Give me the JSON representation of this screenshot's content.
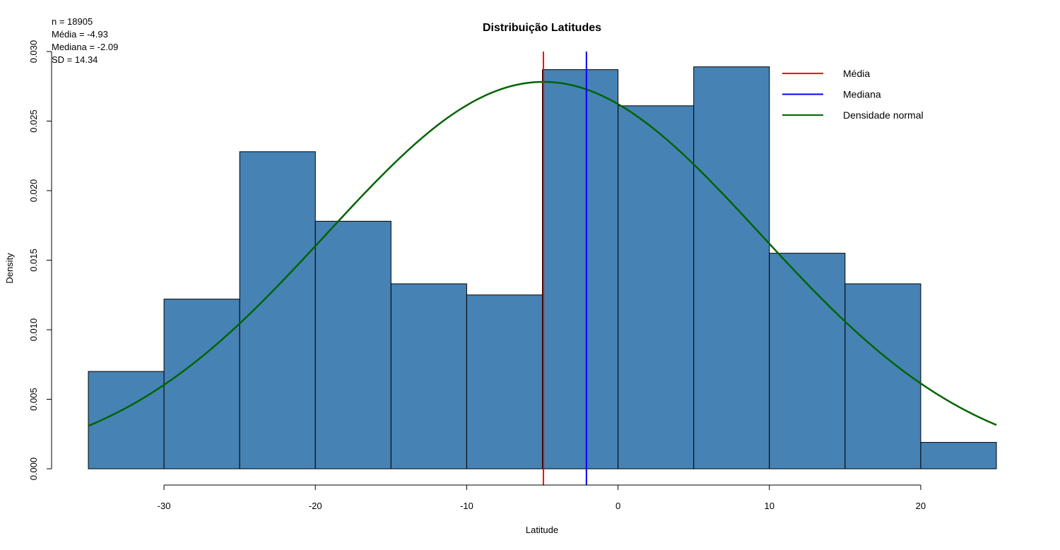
{
  "chart_data": {
    "type": "bar",
    "subtype": "histogram",
    "title": "Distribuição Latitudes",
    "xlabel": "Latitude",
    "ylabel": "Density",
    "xlim": [
      -35,
      25
    ],
    "ylim": [
      0,
      0.03
    ],
    "x_ticks": [
      -30,
      -20,
      -10,
      0,
      10,
      20
    ],
    "x_tick_labels": [
      "-30",
      "-20",
      "-10",
      "0",
      "10",
      "20"
    ],
    "y_ticks": [
      0,
      0.005,
      0.01,
      0.015,
      0.02,
      0.025,
      0.03
    ],
    "y_tick_labels": [
      "0.000",
      "0.005",
      "0.010",
      "0.015",
      "0.020",
      "0.025",
      "0.030"
    ],
    "bins": [
      {
        "start": -35,
        "end": -30,
        "density": 0.007
      },
      {
        "start": -30,
        "end": -25,
        "density": 0.0122
      },
      {
        "start": -25,
        "end": -20,
        "density": 0.0228
      },
      {
        "start": -20,
        "end": -15,
        "density": 0.0178
      },
      {
        "start": -15,
        "end": -10,
        "density": 0.0133
      },
      {
        "start": -10,
        "end": -5,
        "density": 0.0125
      },
      {
        "start": -5,
        "end": 0,
        "density": 0.0287
      },
      {
        "start": 0,
        "end": 5,
        "density": 0.0261
      },
      {
        "start": 5,
        "end": 10,
        "density": 0.0289
      },
      {
        "start": 10,
        "end": 15,
        "density": 0.0155
      },
      {
        "start": 15,
        "end": 20,
        "density": 0.0133
      },
      {
        "start": 20,
        "end": 25,
        "density": 0.0019
      }
    ],
    "bar_color": "#4682B4",
    "bar_border": "#000000",
    "vlines": [
      {
        "name": "Média",
        "x": -4.93,
        "color": "#FF0000"
      },
      {
        "name": "Mediana",
        "x": -2.09,
        "color": "#0000FF"
      }
    ],
    "normal_curve": {
      "name": "Densidade normal",
      "mean": -4.93,
      "sd": 14.34,
      "color": "#006400"
    },
    "legend": {
      "position": "top-right",
      "entries": [
        {
          "label": "Média",
          "color": "#FF0000"
        },
        {
          "label": "Mediana",
          "color": "#0000FF"
        },
        {
          "label": "Densidade normal",
          "color": "#006400"
        }
      ]
    },
    "annotations": [
      "n = 18905",
      "Média = -4.93",
      "Mediana = -2.09",
      "SD = 14.34"
    ]
  }
}
